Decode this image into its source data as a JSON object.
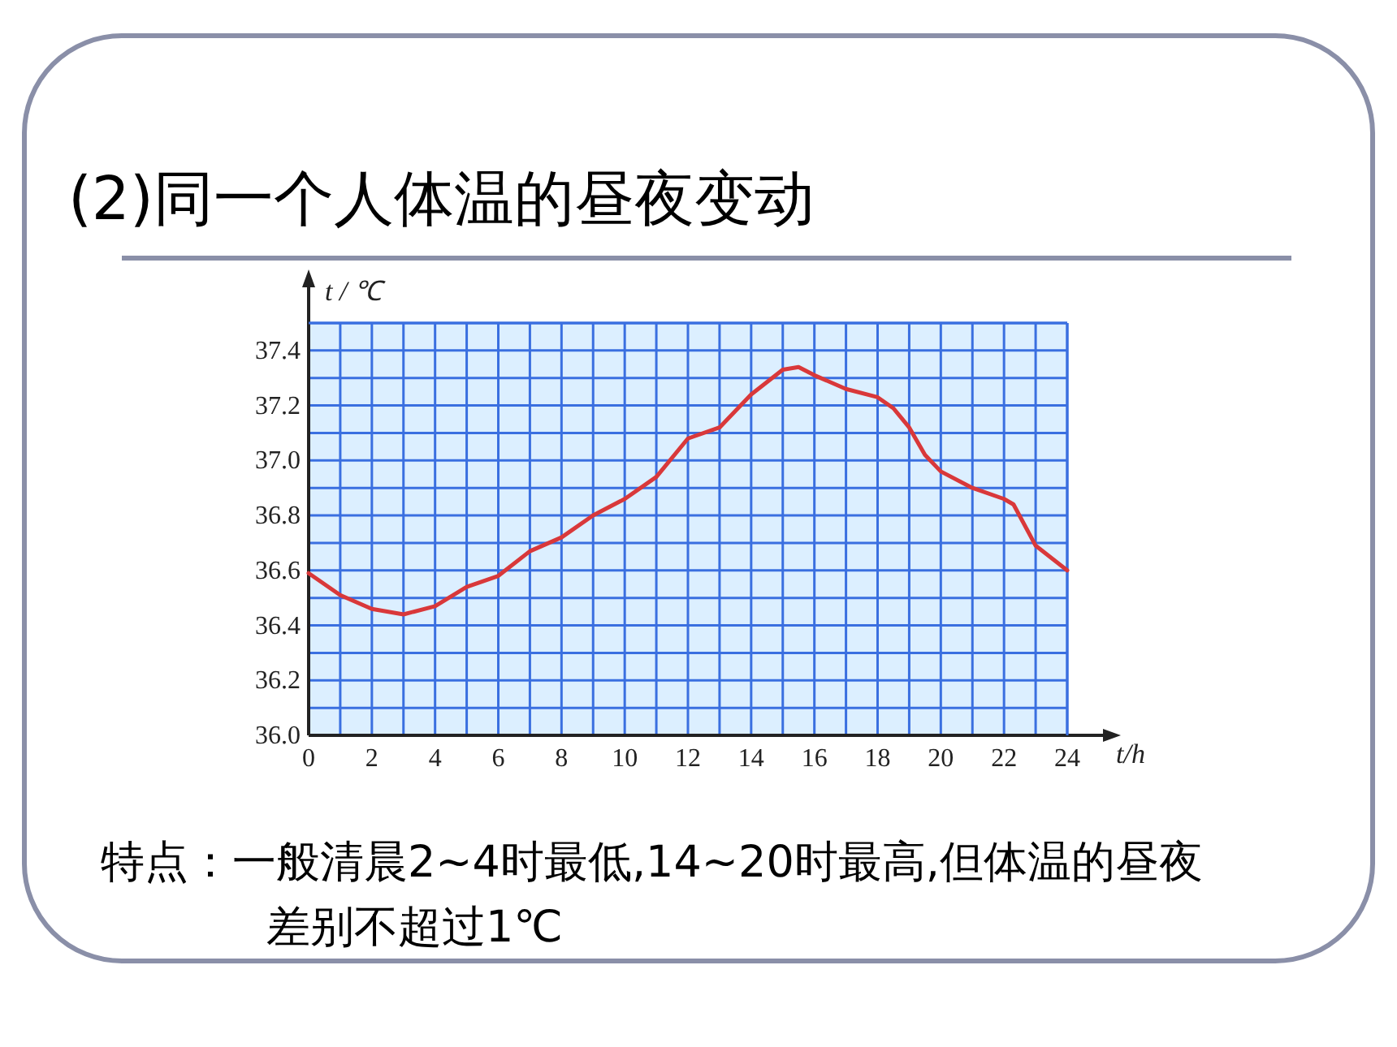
{
  "chart_data": {
    "type": "line",
    "title": "(2)同一个人体温的昼夜变动",
    "xlabel": "t/h",
    "ylabel": "t / ℃",
    "x": [
      0,
      1,
      2,
      3,
      4,
      5,
      6,
      7,
      8,
      9,
      10,
      11,
      12,
      13,
      14,
      15,
      15.5,
      16,
      17,
      18,
      18.5,
      19,
      19.5,
      20,
      21,
      22,
      22.3,
      23,
      24
    ],
    "series": [
      {
        "color": "#d9383a",
        "values": [
          36.59,
          36.51,
          36.46,
          36.44,
          36.47,
          36.54,
          36.58,
          36.67,
          36.72,
          36.8,
          36.86,
          36.94,
          37.08,
          37.12,
          37.24,
          37.33,
          37.34,
          37.31,
          37.26,
          37.23,
          37.19,
          37.12,
          37.02,
          36.96,
          36.9,
          36.86,
          36.84,
          36.69,
          36.6
        ]
      }
    ],
    "xlim": [
      0,
      24
    ],
    "ylim": [
      36.0,
      37.5
    ],
    "xticks": [
      0,
      {
        "value": 1,
        "label": null
      },
      2,
      {
        "value": 3,
        "label": null
      },
      4,
      {
        "value": 5,
        "label": null
      },
      6,
      {
        "value": 7,
        "label": null
      },
      8,
      {
        "value": 9,
        "label": null
      },
      10,
      {
        "value": 11,
        "label": null
      },
      12,
      {
        "value": 13,
        "label": null
      },
      14,
      {
        "value": 15,
        "label": null
      },
      16,
      {
        "value": 17,
        "label": null
      },
      18,
      {
        "value": 19,
        "label": null
      },
      20,
      {
        "value": 21,
        "label": null
      },
      22,
      {
        "value": 23,
        "label": null
      },
      24
    ],
    "yticks": [
      {
        "value": 36.0,
        "label": "36.0"
      },
      {
        "value": 36.1,
        "label": null
      },
      36.2,
      {
        "value": 36.3,
        "label": null
      },
      36.4,
      {
        "value": 36.5,
        "label": null
      },
      36.6,
      {
        "value": 36.7,
        "label": null
      },
      36.8,
      {
        "value": 36.9,
        "label": null
      },
      {
        "value": 37.0,
        "label": "37.0"
      },
      {
        "value": 37.1,
        "label": null
      },
      37.2,
      {
        "value": 37.3,
        "label": null
      },
      37.4,
      {
        "value": 37.5,
        "label": null
      }
    ],
    "grid": true,
    "marker": "none",
    "line_style": "solid",
    "annotations": [
      "特点：一般清晨2~4时最低,14~20时最高,但体温的昼夜差别不超过1℃"
    ]
  }
}
